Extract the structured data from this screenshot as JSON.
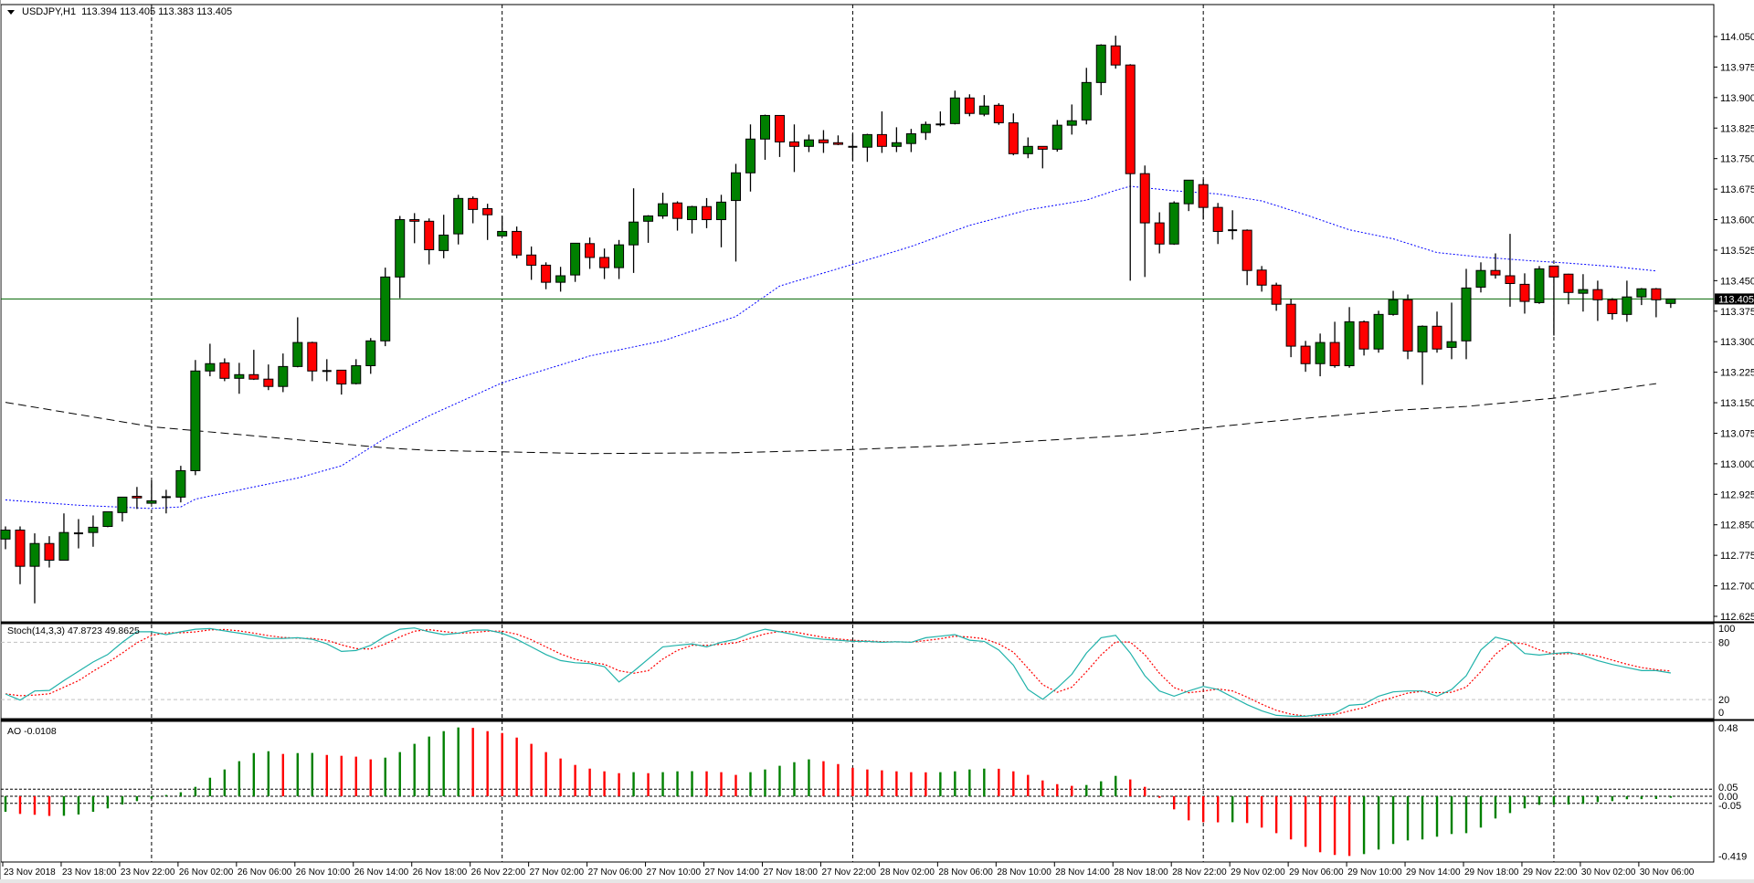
{
  "window": {
    "symbol_label": "USDJPY,H1",
    "ohlc_readout": "113.394 113.405 113.383 113.405"
  },
  "indicators": {
    "stoch_label": "Stoch(14,3,3) 47.8723 49.8625",
    "ao_label": "AO -0.0108"
  },
  "current_price": "113.405",
  "colors": {
    "bull": "#008000",
    "bear": "#ff0000",
    "ma_fast": "#0000ff",
    "ma_slow": "#000000",
    "price_line": "#006400",
    "stoch_main": "#20b2aa",
    "stoch_signal": "#ff0000",
    "grid": "#c0c0c0"
  },
  "chart_data": {
    "type": "candlestick",
    "title": "USDJPY,H1",
    "price_axis_labels": [
      "114.050",
      "113.975",
      "113.900",
      "113.825",
      "113.750",
      "113.675",
      "113.600",
      "113.525",
      "113.450",
      "113.375",
      "113.300",
      "113.225",
      "113.150",
      "113.075",
      "113.000",
      "112.925",
      "112.850",
      "112.775",
      "112.700",
      "112.625"
    ],
    "ylim": [
      112.625,
      114.05
    ],
    "time_labels": [
      "23 Nov 2018",
      "23 Nov 18:00",
      "23 Nov 22:00",
      "26 Nov 02:00",
      "26 Nov 06:00",
      "26 Nov 10:00",
      "26 Nov 14:00",
      "26 Nov 18:00",
      "26 Nov 22:00",
      "27 Nov 02:00",
      "27 Nov 06:00",
      "27 Nov 10:00",
      "27 Nov 14:00",
      "27 Nov 18:00",
      "27 Nov 22:00",
      "28 Nov 02:00",
      "28 Nov 06:00",
      "28 Nov 10:00",
      "28 Nov 14:00",
      "28 Nov 18:00",
      "28 Nov 22:00",
      "29 Nov 02:00",
      "29 Nov 06:00",
      "29 Nov 10:00",
      "29 Nov 14:00",
      "29 Nov 18:00",
      "29 Nov 22:00",
      "30 Nov 02:00",
      "30 Nov 06:00"
    ],
    "time_label_every_bars": 4,
    "period_separator_bars": [
      10,
      34,
      58,
      82,
      106
    ],
    "ohlc": [
      [
        112.815,
        112.846,
        112.79,
        112.837
      ],
      [
        112.837,
        112.846,
        112.704,
        112.748
      ],
      [
        112.748,
        112.829,
        112.657,
        112.804
      ],
      [
        112.804,
        112.822,
        112.745,
        112.763
      ],
      [
        112.763,
        112.878,
        112.763,
        112.831
      ],
      [
        112.829,
        112.864,
        112.792,
        112.829
      ],
      [
        112.831,
        112.873,
        112.796,
        112.844
      ],
      [
        112.846,
        112.882,
        112.844,
        112.882
      ],
      [
        112.88,
        112.918,
        112.858,
        112.918
      ],
      [
        112.92,
        112.943,
        112.889,
        112.916
      ],
      [
        112.903,
        112.959,
        112.903,
        112.909
      ],
      [
        112.918,
        112.936,
        112.878,
        112.918
      ],
      [
        112.918,
        112.995,
        112.905,
        112.983
      ],
      [
        112.983,
        113.255,
        112.972,
        113.228
      ],
      [
        113.228,
        113.295,
        113.215,
        113.246
      ],
      [
        113.248,
        113.259,
        113.203,
        113.21
      ],
      [
        113.21,
        113.248,
        113.172,
        113.219
      ],
      [
        113.219,
        113.28,
        113.206,
        113.208
      ],
      [
        113.208,
        113.244,
        113.181,
        113.19
      ],
      [
        113.19,
        113.271,
        113.176,
        113.239
      ],
      [
        113.239,
        113.36,
        113.237,
        113.298
      ],
      [
        113.298,
        113.3,
        113.203,
        113.228
      ],
      [
        113.228,
        113.257,
        113.203,
        113.228
      ],
      [
        113.23,
        113.23,
        113.17,
        113.196
      ],
      [
        113.197,
        113.257,
        113.195,
        113.241
      ],
      [
        113.241,
        113.309,
        113.221,
        113.302
      ],
      [
        113.302,
        113.482,
        113.289,
        113.459
      ],
      [
        113.459,
        113.609,
        113.407,
        113.6
      ],
      [
        113.6,
        113.616,
        113.542,
        113.596
      ],
      [
        113.596,
        113.603,
        113.49,
        113.526
      ],
      [
        113.524,
        113.612,
        113.505,
        113.562
      ],
      [
        113.565,
        113.661,
        113.539,
        113.652
      ],
      [
        113.652,
        113.657,
        113.591,
        113.625
      ],
      [
        113.627,
        113.639,
        113.55,
        113.612
      ],
      [
        113.56,
        113.609,
        113.56,
        113.571
      ],
      [
        113.571,
        113.583,
        113.505,
        113.513
      ],
      [
        113.513,
        113.534,
        113.452,
        113.488
      ],
      [
        113.488,
        113.495,
        113.429,
        113.446
      ],
      [
        113.446,
        113.484,
        113.423,
        113.462
      ],
      [
        113.464,
        113.542,
        113.447,
        113.542
      ],
      [
        113.541,
        113.556,
        113.479,
        113.507
      ],
      [
        113.507,
        113.529,
        113.454,
        113.482
      ],
      [
        113.482,
        113.55,
        113.454,
        113.538
      ],
      [
        113.538,
        113.677,
        113.469,
        113.594
      ],
      [
        113.596,
        113.611,
        113.543,
        113.609
      ],
      [
        113.609,
        113.666,
        113.602,
        113.639
      ],
      [
        113.641,
        113.645,
        113.573,
        113.603
      ],
      [
        113.6,
        113.634,
        113.566,
        113.632
      ],
      [
        113.632,
        113.653,
        113.579,
        113.6
      ],
      [
        113.6,
        113.661,
        113.532,
        113.643
      ],
      [
        113.647,
        113.737,
        113.497,
        113.715
      ],
      [
        113.715,
        113.834,
        113.669,
        113.798
      ],
      [
        113.798,
        113.858,
        113.747,
        113.856
      ],
      [
        113.856,
        113.856,
        113.754,
        113.791
      ],
      [
        113.791,
        113.834,
        113.717,
        113.78
      ],
      [
        113.78,
        113.809,
        113.766,
        113.796
      ],
      [
        113.796,
        113.82,
        113.764,
        113.789
      ],
      [
        113.789,
        113.807,
        113.783,
        113.785
      ],
      [
        113.779,
        113.811,
        113.745,
        113.779
      ],
      [
        113.778,
        113.811,
        113.742,
        113.809
      ],
      [
        113.809,
        113.866,
        113.764,
        113.78
      ],
      [
        113.78,
        113.827,
        113.766,
        113.789
      ],
      [
        113.787,
        113.823,
        113.766,
        113.811
      ],
      [
        113.814,
        113.841,
        113.796,
        113.834
      ],
      [
        113.834,
        113.866,
        113.829,
        113.834
      ],
      [
        113.836,
        113.917,
        113.834,
        113.899
      ],
      [
        113.899,
        113.908,
        113.854,
        113.861
      ],
      [
        113.859,
        113.906,
        113.854,
        113.879
      ],
      [
        113.881,
        113.886,
        113.833,
        113.838
      ],
      [
        113.838,
        113.861,
        113.758,
        113.762
      ],
      [
        113.762,
        113.802,
        113.751,
        113.78
      ],
      [
        113.78,
        113.78,
        113.726,
        113.773
      ],
      [
        113.773,
        113.845,
        113.767,
        113.832
      ],
      [
        113.832,
        113.883,
        113.809,
        113.843
      ],
      [
        113.845,
        113.973,
        113.834,
        113.937
      ],
      [
        113.937,
        114.031,
        113.906,
        114.029
      ],
      [
        114.027,
        114.052,
        113.971,
        113.98
      ],
      [
        113.98,
        113.982,
        113.45,
        113.713
      ],
      [
        113.713,
        113.733,
        113.459,
        113.592
      ],
      [
        113.592,
        113.618,
        113.517,
        113.54
      ],
      [
        113.54,
        113.645,
        113.538,
        113.641
      ],
      [
        113.639,
        113.697,
        113.621,
        113.697
      ],
      [
        113.686,
        113.699,
        113.6,
        113.63
      ],
      [
        113.63,
        113.641,
        113.54,
        113.571
      ],
      [
        113.574,
        113.623,
        113.551,
        113.574
      ],
      [
        113.574,
        113.576,
        113.439,
        113.475
      ],
      [
        113.476,
        113.486,
        113.423,
        113.439
      ],
      [
        113.439,
        113.445,
        113.376,
        113.392
      ],
      [
        113.392,
        113.405,
        113.262,
        113.289
      ],
      [
        113.289,
        113.302,
        113.226,
        113.246
      ],
      [
        113.246,
        113.32,
        113.215,
        113.298
      ],
      [
        113.298,
        113.349,
        113.236,
        113.241
      ],
      [
        113.241,
        113.385,
        113.236,
        113.349
      ],
      [
        113.349,
        113.352,
        113.266,
        113.282
      ],
      [
        113.282,
        113.376,
        113.273,
        113.367
      ],
      [
        113.367,
        113.425,
        113.364,
        113.403
      ],
      [
        113.403,
        113.416,
        113.257,
        113.277
      ],
      [
        113.275,
        113.34,
        113.194,
        113.338
      ],
      [
        113.338,
        113.374,
        113.273,
        113.282
      ],
      [
        113.286,
        113.396,
        113.257,
        113.3
      ],
      [
        113.302,
        113.479,
        113.257,
        113.432
      ],
      [
        113.434,
        113.495,
        113.421,
        113.475
      ],
      [
        113.475,
        113.517,
        113.455,
        113.464
      ],
      [
        113.462,
        113.565,
        113.386,
        113.443
      ],
      [
        113.441,
        113.468,
        113.369,
        113.399
      ],
      [
        113.396,
        113.486,
        113.393,
        113.479
      ],
      [
        113.486,
        113.486,
        113.315,
        113.459
      ],
      [
        113.466,
        113.467,
        113.392,
        113.421
      ],
      [
        113.419,
        113.466,
        113.374,
        113.428
      ],
      [
        113.428,
        113.45,
        113.351,
        113.403
      ],
      [
        113.403,
        113.407,
        113.354,
        113.369
      ],
      [
        113.367,
        113.45,
        113.349,
        113.41
      ],
      [
        113.41,
        113.432,
        113.39,
        113.43
      ],
      [
        113.43,
        113.432,
        113.36,
        113.403
      ],
      [
        113.394,
        113.405,
        113.383,
        113.405
      ]
    ],
    "ma_fast_points": [
      [
        0,
        112.911
      ],
      [
        5,
        112.898
      ],
      [
        10,
        112.89
      ],
      [
        12,
        112.894
      ],
      [
        13,
        112.913
      ],
      [
        17,
        112.943
      ],
      [
        20,
        112.965
      ],
      [
        23,
        112.995
      ],
      [
        26,
        113.063
      ],
      [
        29,
        113.118
      ],
      [
        34,
        113.199
      ],
      [
        40,
        113.265
      ],
      [
        45,
        113.302
      ],
      [
        50,
        113.362
      ],
      [
        53,
        113.437
      ],
      [
        58,
        113.49
      ],
      [
        62,
        113.534
      ],
      [
        66,
        113.586
      ],
      [
        70,
        113.624
      ],
      [
        74,
        113.648
      ],
      [
        76,
        113.672
      ],
      [
        77,
        113.682
      ],
      [
        80,
        113.671
      ],
      [
        83,
        113.663
      ],
      [
        86,
        113.646
      ],
      [
        89,
        113.612
      ],
      [
        92,
        113.575
      ],
      [
        95,
        113.553
      ],
      [
        98,
        113.519
      ],
      [
        101,
        113.508
      ],
      [
        104,
        113.5
      ],
      [
        107,
        113.493
      ],
      [
        110,
        113.485
      ],
      [
        113,
        113.474
      ]
    ],
    "ma_slow_points": [
      [
        0,
        113.151
      ],
      [
        10,
        113.091
      ],
      [
        20,
        113.059
      ],
      [
        26,
        113.039
      ],
      [
        29,
        113.033
      ],
      [
        40,
        113.025
      ],
      [
        50,
        113.027
      ],
      [
        58,
        113.035
      ],
      [
        65,
        113.045
      ],
      [
        70,
        113.055
      ],
      [
        77,
        113.07
      ],
      [
        80,
        113.08
      ],
      [
        86,
        113.102
      ],
      [
        95,
        113.131
      ],
      [
        100,
        113.141
      ],
      [
        106,
        113.161
      ],
      [
        113,
        113.197
      ]
    ],
    "stoch": {
      "levels": [
        80,
        20
      ],
      "axis_labels": [
        "100",
        "80",
        "20",
        "0"
      ],
      "k": [
        25.8,
        19.4,
        29,
        29.6,
        40,
        49.7,
        59.3,
        67.2,
        80,
        91,
        91,
        88,
        91,
        93.7,
        94.4,
        92,
        89.6,
        87.3,
        84.1,
        84,
        84.8,
        83.2,
        78.4,
        70.4,
        71.4,
        76.8,
        86.4,
        93.7,
        95,
        91,
        88,
        89.6,
        92.8,
        92.8,
        89.6,
        83.2,
        75.2,
        67.2,
        60.9,
        58.6,
        57.7,
        54.5,
        38.5,
        49.7,
        62.5,
        75.2,
        76.8,
        78.4,
        75.2,
        80,
        83.2,
        89.6,
        93.7,
        91,
        88,
        84.8,
        83.2,
        82.2,
        81,
        81,
        80,
        80.6,
        80,
        84.8,
        86.4,
        88,
        82.2,
        81,
        72,
        56,
        30.5,
        20.3,
        32.2,
        46.5,
        68.8,
        84.8,
        87.3,
        68.8,
        45,
        29,
        23.5,
        29,
        33.8,
        30.5,
        22.6,
        14.6,
        8.2,
        3.4,
        2.5,
        2.5,
        4.4,
        5.7,
        14,
        15.2,
        23.5,
        28,
        29,
        29,
        23.5,
        30.5,
        45,
        72,
        85.4,
        81.6,
        68.2,
        66.6,
        68.2,
        69.5,
        66.3,
        60.9,
        56.7,
        53.5,
        50.3,
        50.3,
        47.87
      ],
      "d": [
        26,
        24,
        24.7,
        26,
        32.9,
        39.8,
        49.7,
        58.7,
        68.8,
        79.4,
        87.3,
        90,
        90,
        90.9,
        93,
        93.4,
        92,
        89.6,
        87,
        85.1,
        84.3,
        84,
        82.1,
        77.3,
        73.4,
        72.9,
        78.2,
        85.6,
        91.7,
        93.2,
        91.3,
        89.5,
        90.1,
        91.7,
        91.7,
        88.5,
        82.7,
        75.2,
        67.8,
        62.2,
        59.1,
        56.9,
        50.2,
        47.6,
        50.2,
        62.5,
        71.5,
        76.8,
        76.8,
        77.9,
        79.5,
        84.3,
        88.8,
        91.4,
        90.9,
        87.9,
        85.3,
        83.4,
        82.1,
        81.4,
        80.7,
        80.5,
        80.2,
        81.8,
        83.7,
        86.4,
        85.5,
        83.7,
        78.4,
        69.7,
        52.8,
        35.6,
        27.7,
        33,
        49.2,
        66.7,
        80.3,
        80.3,
        67,
        47.6,
        32.5,
        27.2,
        28.8,
        31.1,
        29,
        22.6,
        15.1,
        8.7,
        4.7,
        2.8,
        3.1,
        4.2,
        8,
        11.6,
        17.6,
        22.2,
        26.8,
        28.7,
        27.2,
        27.7,
        33,
        49.2,
        67.5,
        79.7,
        78.4,
        72.1,
        67.7,
        68.1,
        68,
        65.6,
        61.3,
        57,
        53.5,
        51.4,
        49.86
      ]
    },
    "ao": {
      "levels": [
        0.05,
        0,
        -0.05
      ],
      "axis_labels": [
        "0.48",
        "0.05",
        "0.00",
        "-0.05",
        "-0.419"
      ],
      "values": [
        -0.109,
        -0.124,
        -0.13,
        -0.138,
        -0.137,
        -0.128,
        -0.109,
        -0.085,
        -0.058,
        -0.034,
        -0.017,
        0.009,
        0.028,
        0.066,
        0.13,
        0.188,
        0.246,
        0.303,
        0.316,
        0.297,
        0.303,
        0.304,
        0.29,
        0.284,
        0.278,
        0.259,
        0.271,
        0.31,
        0.368,
        0.419,
        0.457,
        0.483,
        0.48,
        0.457,
        0.444,
        0.412,
        0.368,
        0.31,
        0.265,
        0.22,
        0.194,
        0.175,
        0.162,
        0.169,
        0.162,
        0.169,
        0.175,
        0.176,
        0.175,
        0.169,
        0.15,
        0.169,
        0.188,
        0.214,
        0.239,
        0.259,
        0.246,
        0.226,
        0.2,
        0.188,
        0.182,
        0.175,
        0.169,
        0.168,
        0.169,
        0.175,
        0.188,
        0.194,
        0.193,
        0.175,
        0.15,
        0.111,
        0.085,
        0.073,
        0.079,
        0.105,
        0.143,
        0.118,
        0.066,
        -0.011,
        -0.092,
        -0.169,
        -0.182,
        -0.183,
        -0.182,
        -0.188,
        -0.22,
        -0.259,
        -0.303,
        -0.355,
        -0.393,
        -0.412,
        -0.419,
        -0.406,
        -0.374,
        -0.335,
        -0.31,
        -0.303,
        -0.284,
        -0.265,
        -0.259,
        -0.22,
        -0.156,
        -0.118,
        -0.085,
        -0.06,
        -0.059,
        -0.058,
        -0.053,
        -0.041,
        -0.034,
        -0.021,
        -0.02,
        -0.019,
        -0.0108
      ]
    }
  }
}
